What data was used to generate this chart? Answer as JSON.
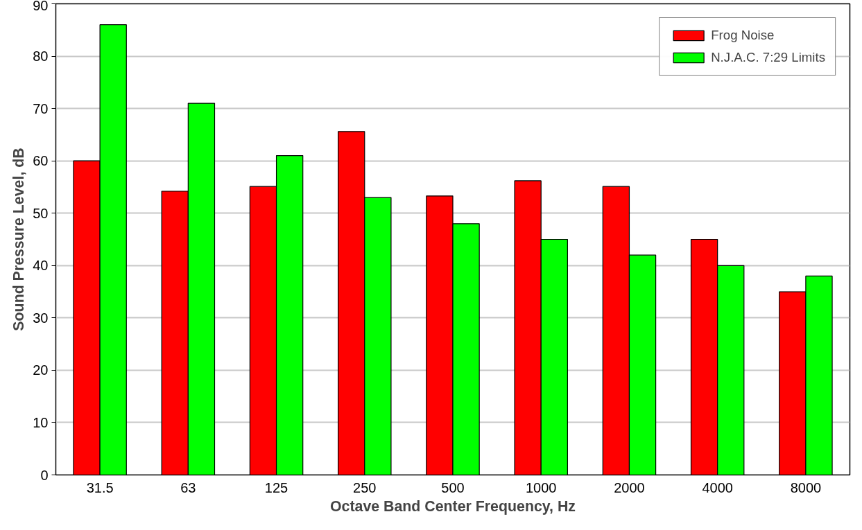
{
  "chart_data": {
    "type": "bar",
    "xlabel": "Octave Band Center Frequency, Hz",
    "ylabel": "Sound Pressure Level, dB",
    "categories": [
      "31.5",
      "63",
      "125",
      "250",
      "500",
      "1000",
      "2000",
      "4000",
      "8000"
    ],
    "series": [
      {
        "name": "Frog Noise",
        "color": "#ff0000",
        "values": [
          60,
          54.2,
          55.1,
          65.6,
          53.3,
          56.2,
          55.1,
          45,
          35
        ]
      },
      {
        "name": "N.J.A.C. 7:29 Limits",
        "color": "#00ff00",
        "values": [
          86,
          71,
          61,
          53,
          48,
          45,
          42,
          40,
          38
        ]
      }
    ],
    "ylim": [
      0,
      90
    ],
    "yticks": [
      0,
      10,
      20,
      30,
      40,
      50,
      60,
      70,
      80,
      90
    ],
    "grid": "y",
    "legend": "top right"
  }
}
